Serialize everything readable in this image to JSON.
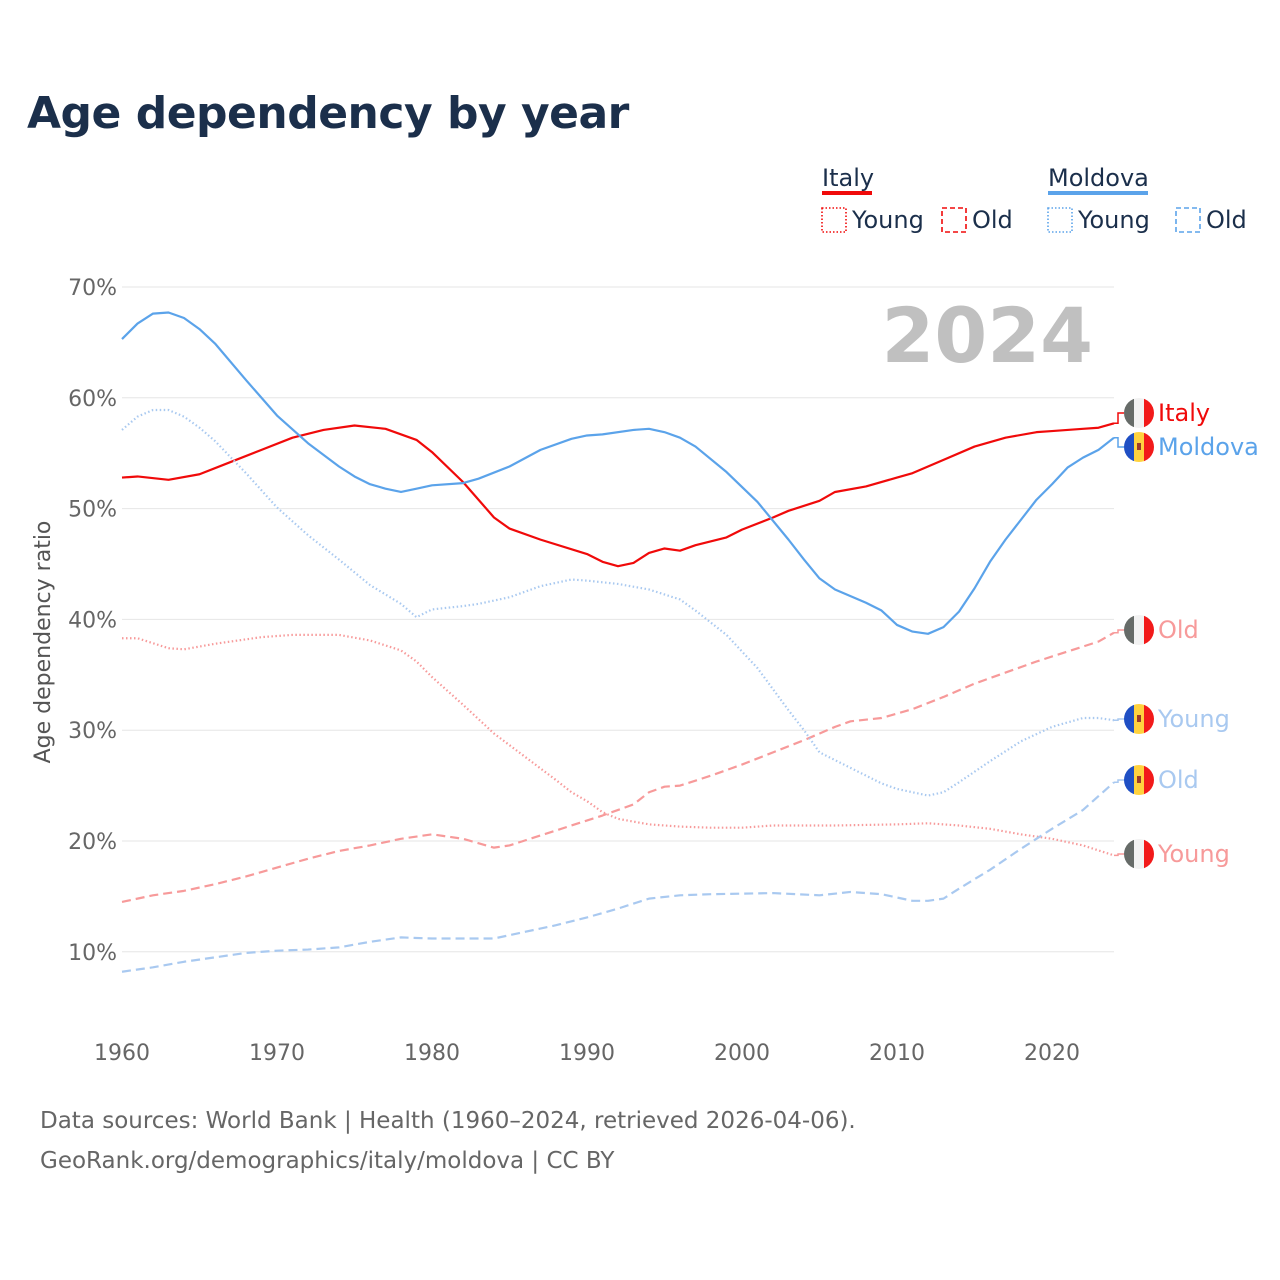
{
  "title": "Age dependency by year",
  "colors": {
    "italy": "#f00a0a",
    "italy_light": "#f79a9a",
    "moldova": "#5ba3ea",
    "moldova_light": "#a9c9f0"
  },
  "legend": {
    "groups": [
      {
        "name": "Italy",
        "items": [
          "Young",
          "Old"
        ]
      },
      {
        "name": "Moldova",
        "items": [
          "Young",
          "Old"
        ]
      }
    ]
  },
  "year_label": "2024",
  "source_line1": "Data sources: World Bank | Health (1960–2024, retrieved 2026-04-06).",
  "source_line2": "GeoRank.org/demographics/italy/moldova | CC BY",
  "chart_data": {
    "type": "line",
    "title": "Age dependency by year",
    "xlabel": "",
    "ylabel": "Age dependency ratio",
    "xlim": [
      1960,
      2024
    ],
    "ylim": [
      10,
      70
    ],
    "xticks": [
      "1960",
      "1970",
      "1980",
      "1990",
      "2000",
      "2010",
      "2020"
    ],
    "yticks": [
      "10%",
      "20%",
      "30%",
      "40%",
      "50%",
      "60%",
      "70%"
    ],
    "grid": true,
    "legend_position": "top-right",
    "series": [
      {
        "name": "Italy",
        "end_label": "Italy",
        "style": "solid",
        "color": "italy",
        "x": [
          1960,
          1961,
          1963,
          1965,
          1967,
          1969,
          1971,
          1973,
          1975,
          1977,
          1979,
          1980,
          1982,
          1984,
          1985,
          1987,
          1990,
          1991,
          1992,
          1993,
          1994,
          1995,
          1996,
          1997,
          1999,
          2000,
          2002,
          2003,
          2005,
          2006,
          2008,
          2010,
          2011,
          2013,
          2015,
          2017,
          2019,
          2020,
          2022,
          2023,
          2024
        ],
        "y": [
          52.8,
          52.9,
          52.6,
          53.1,
          54.2,
          55.3,
          56.4,
          57.1,
          57.5,
          57.2,
          56.2,
          55.1,
          52.4,
          49.2,
          48.2,
          47.2,
          45.9,
          45.2,
          44.8,
          45.1,
          46.0,
          46.4,
          46.2,
          46.7,
          47.4,
          48.1,
          49.2,
          49.8,
          50.7,
          51.5,
          52.0,
          52.8,
          53.2,
          54.4,
          55.6,
          56.4,
          56.9,
          57.0,
          57.2,
          57.3,
          57.7
        ]
      },
      {
        "name": "Moldova",
        "end_label": "Moldova",
        "style": "solid",
        "color": "moldova",
        "x": [
          1960,
          1961,
          1962,
          1963,
          1964,
          1965,
          1966,
          1968,
          1970,
          1972,
          1974,
          1975,
          1976,
          1977,
          1978,
          1979,
          1980,
          1982,
          1983,
          1985,
          1987,
          1989,
          1990,
          1991,
          1993,
          1994,
          1995,
          1996,
          1997,
          1999,
          2001,
          2003,
          2004,
          2005,
          2006,
          2008,
          2009,
          2010,
          2011,
          2012,
          2013,
          2014,
          2015,
          2016,
          2017,
          2019,
          2020,
          2021,
          2022,
          2023,
          2024
        ],
        "y": [
          65.3,
          66.7,
          67.6,
          67.7,
          67.2,
          66.2,
          64.9,
          61.6,
          58.4,
          55.9,
          53.8,
          52.9,
          52.2,
          51.8,
          51.5,
          51.8,
          52.1,
          52.3,
          52.7,
          53.8,
          55.3,
          56.3,
          56.6,
          56.7,
          57.1,
          57.2,
          56.9,
          56.4,
          55.6,
          53.3,
          50.6,
          47.2,
          45.4,
          43.7,
          42.7,
          41.5,
          40.8,
          39.5,
          38.9,
          38.7,
          39.3,
          40.7,
          42.8,
          45.2,
          47.2,
          50.8,
          52.2,
          53.7,
          54.6,
          55.3,
          56.4
        ]
      },
      {
        "name": "Italy Young",
        "end_label": "Young",
        "style": "dotted",
        "color": "italy_light",
        "x": [
          1960,
          1961,
          1963,
          1964,
          1966,
          1969,
          1971,
          1974,
          1976,
          1978,
          1979,
          1980,
          1982,
          1984,
          1986,
          1988,
          1989,
          1990,
          1991,
          1992,
          1994,
          1996,
          1998,
          2000,
          2002,
          2006,
          2010,
          2012,
          2014,
          2016,
          2018,
          2020,
          2022,
          2024
        ],
        "y": [
          38.3,
          38.3,
          37.4,
          37.3,
          37.8,
          38.4,
          38.6,
          38.6,
          38.1,
          37.2,
          36.2,
          34.8,
          32.3,
          29.7,
          27.6,
          25.5,
          24.4,
          23.6,
          22.6,
          22.0,
          21.5,
          21.3,
          21.2,
          21.2,
          21.4,
          21.4,
          21.5,
          21.6,
          21.4,
          21.1,
          20.6,
          20.2,
          19.6,
          18.7
        ]
      },
      {
        "name": "Italy Old",
        "end_label": "Old",
        "style": "dashed",
        "color": "italy_light",
        "x": [
          1960,
          1962,
          1964,
          1966,
          1968,
          1970,
          1972,
          1974,
          1976,
          1978,
          1980,
          1982,
          1984,
          1985,
          1987,
          1989,
          1991,
          1993,
          1994,
          1995,
          1996,
          1998,
          2000,
          2002,
          2004,
          2006,
          2007,
          2009,
          2011,
          2013,
          2015,
          2017,
          2019,
          2021,
          2023,
          2024
        ],
        "y": [
          14.5,
          15.1,
          15.5,
          16.1,
          16.8,
          17.6,
          18.4,
          19.1,
          19.6,
          20.2,
          20.6,
          20.2,
          19.4,
          19.6,
          20.5,
          21.4,
          22.3,
          23.3,
          24.4,
          24.9,
          25.0,
          25.9,
          26.9,
          28.0,
          29.1,
          30.3,
          30.8,
          31.1,
          31.9,
          33.0,
          34.2,
          35.2,
          36.2,
          37.1,
          38.0,
          38.8
        ]
      },
      {
        "name": "Moldova Young",
        "end_label": "Young",
        "style": "dotted",
        "color": "moldova_light",
        "x": [
          1960,
          1961,
          1962,
          1963,
          1964,
          1965,
          1966,
          1968,
          1970,
          1972,
          1974,
          1976,
          1978,
          1979,
          1980,
          1982,
          1983,
          1985,
          1987,
          1989,
          1990,
          1992,
          1994,
          1996,
          1997,
          1999,
          2001,
          2003,
          2004,
          2005,
          2007,
          2009,
          2010,
          2012,
          2013,
          2014,
          2016,
          2018,
          2020,
          2022,
          2023,
          2024
        ],
        "y": [
          57.1,
          58.3,
          58.9,
          58.9,
          58.3,
          57.3,
          56.1,
          53.2,
          50.1,
          47.6,
          45.4,
          43.1,
          41.4,
          40.2,
          40.9,
          41.2,
          41.4,
          42.0,
          43.0,
          43.6,
          43.5,
          43.2,
          42.7,
          41.8,
          40.8,
          38.6,
          35.6,
          31.8,
          30.0,
          28.0,
          26.6,
          25.2,
          24.7,
          24.1,
          24.4,
          25.3,
          27.2,
          29.0,
          30.3,
          31.1,
          31.1,
          30.9
        ]
      },
      {
        "name": "Moldova Old",
        "end_label": "Old",
        "style": "dashed",
        "color": "moldova_light",
        "x": [
          1960,
          1962,
          1964,
          1966,
          1968,
          1970,
          1972,
          1974,
          1976,
          1978,
          1980,
          1984,
          1986,
          1988,
          1990,
          1992,
          1994,
          1996,
          1998,
          2002,
          2005,
          2007,
          2009,
          2011,
          2012,
          2013,
          2014,
          2016,
          2018,
          2020,
          2022,
          2024
        ],
        "y": [
          8.2,
          8.6,
          9.1,
          9.5,
          9.9,
          10.1,
          10.2,
          10.4,
          10.9,
          11.3,
          11.2,
          11.2,
          11.8,
          12.4,
          13.1,
          13.9,
          14.8,
          15.1,
          15.2,
          15.3,
          15.1,
          15.4,
          15.2,
          14.6,
          14.6,
          14.8,
          15.7,
          17.4,
          19.3,
          21.1,
          22.8,
          25.3
        ]
      }
    ]
  }
}
